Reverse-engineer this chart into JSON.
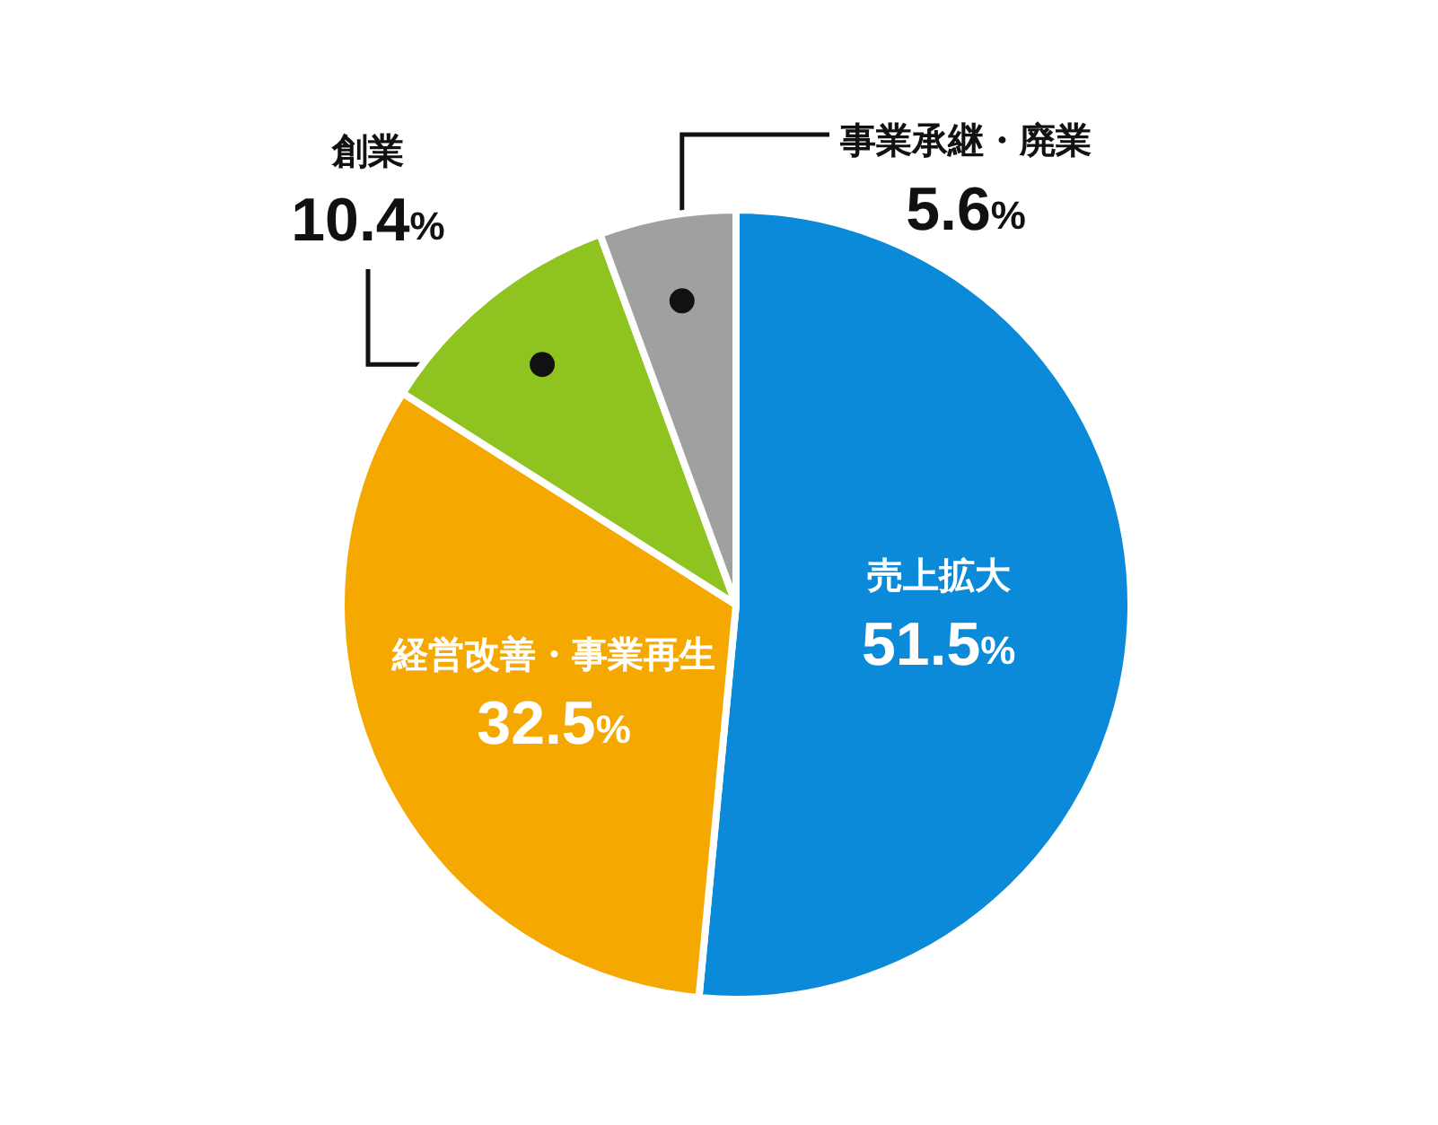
{
  "chart_data": {
    "type": "pie",
    "categories": [
      "売上拡大",
      "経営改善・事業再生",
      "創業",
      "事業承継・廃業"
    ],
    "values": [
      51.5,
      32.5,
      10.4,
      5.6
    ],
    "colors": [
      "#0a8ad8",
      "#f5a800",
      "#8fc31f",
      "#9fa0a0"
    ],
    "value_labels": [
      "51.5%",
      "32.5%",
      "10.4%",
      "5.6%"
    ],
    "legend": false
  }
}
